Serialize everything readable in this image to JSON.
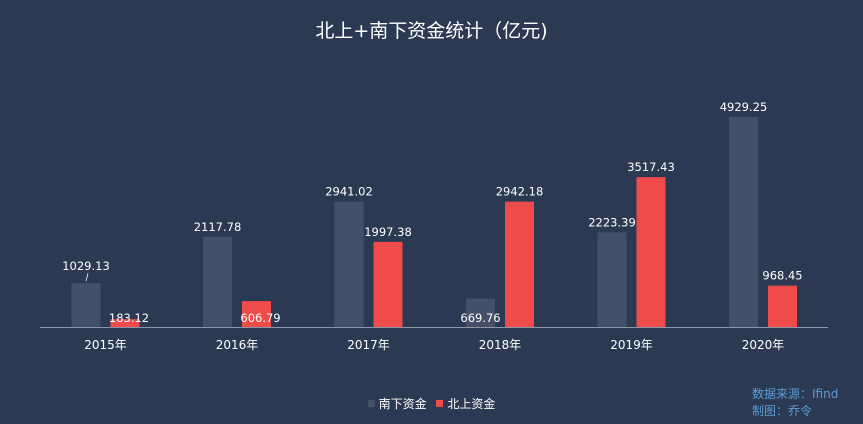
{
  "chart_data": {
    "type": "bar",
    "title": "北上+南下资金统计（亿元)",
    "categories": [
      "2015年",
      "2016年",
      "2017年",
      "2018年",
      "2019年",
      "2020年"
    ],
    "series": [
      {
        "name": "南下资金",
        "color": "#44506a",
        "values": [
          1029.13,
          2117.78,
          2941.02,
          669.76,
          2223.39,
          4929.25
        ]
      },
      {
        "name": "北上资金",
        "color": "#ef4b4b",
        "values": [
          183.12,
          606.79,
          1997.38,
          2942.18,
          3517.43,
          968.45
        ]
      }
    ],
    "ylim": [
      0,
      5000
    ],
    "grid": false,
    "legend_position": "bottom"
  },
  "source": {
    "line1": "数据来源：Ifind",
    "line2": "制图：乔令"
  },
  "colors": {
    "background": "#2b3a52",
    "axis": "#8c96a8",
    "text": "#ffffff",
    "source_text": "#5b9bd5"
  }
}
